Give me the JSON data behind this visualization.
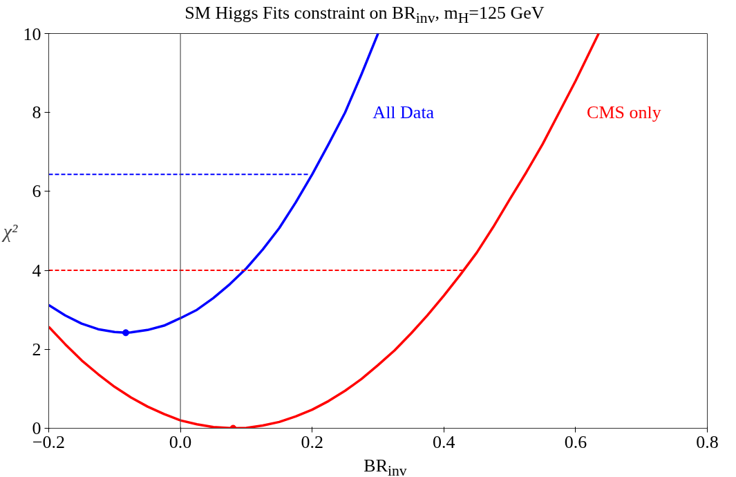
{
  "chart_data": {
    "type": "line",
    "title": "SM Higgs Fits constraint on BR$_{inv}$, m$_{H}$=125 GeV",
    "xlabel": "BR$_{inv}$",
    "ylabel": "χ²",
    "xlim": [
      -0.2,
      0.8
    ],
    "ylim": [
      0,
      10
    ],
    "xticks": [
      {
        "value": -0.2,
        "label": "−0.2"
      },
      {
        "value": 0,
        "label": "0.0"
      },
      0.2,
      0.4,
      0.6,
      0.8
    ],
    "yticks": [
      0,
      2,
      4,
      6,
      8,
      10
    ],
    "grid": false,
    "line_style": "solid",
    "marker": "none",
    "ref_lines": [
      {
        "axis": "x",
        "value": 0,
        "color": "#555555"
      }
    ],
    "series": [
      {
        "name": "All Data",
        "color": "#0000ff",
        "x": [
          -0.2,
          -0.175,
          -0.15,
          -0.125,
          -0.1,
          -0.083,
          -0.075,
          -0.05,
          -0.025,
          0,
          0.025,
          0.05,
          0.075,
          0.1,
          0.125,
          0.15,
          0.175,
          0.2,
          0.225,
          0.25,
          0.275,
          0.3
        ],
        "values": [
          3.12,
          2.86,
          2.65,
          2.51,
          2.44,
          2.42,
          2.43,
          2.49,
          2.6,
          2.79,
          3.0,
          3.3,
          3.65,
          4.05,
          4.53,
          5.07,
          5.72,
          6.43,
          7.2,
          8.0,
          8.97,
          10.0
        ]
      },
      {
        "name": "CMS only",
        "color": "#ff0000",
        "x": [
          -0.2,
          -0.175,
          -0.15,
          -0.125,
          -0.1,
          -0.075,
          -0.05,
          -0.025,
          0,
          0.025,
          0.05,
          0.08,
          0.1,
          0.125,
          0.15,
          0.175,
          0.2,
          0.225,
          0.25,
          0.275,
          0.3,
          0.325,
          0.35,
          0.375,
          0.4,
          0.425,
          0.45,
          0.475,
          0.5,
          0.525,
          0.55,
          0.575,
          0.6,
          0.635
        ],
        "values": [
          2.57,
          2.13,
          1.72,
          1.37,
          1.05,
          0.78,
          0.55,
          0.36,
          0.2,
          0.1,
          0.03,
          0,
          0.01,
          0.07,
          0.16,
          0.3,
          0.47,
          0.69,
          0.95,
          1.25,
          1.6,
          1.97,
          2.4,
          2.86,
          3.36,
          3.89,
          4.45,
          5.1,
          5.8,
          6.48,
          7.2,
          8.0,
          8.8,
          10.0
        ]
      },
      {
        "type": "line",
        "line_style": "dashed",
        "color": "#0000ff",
        "x": [
          -0.2,
          0.195
        ],
        "values": [
          6.43,
          6.43
        ]
      },
      {
        "type": "line",
        "line_style": "dashed",
        "color": "#ff0000",
        "x": [
          -0.2,
          0.43
        ],
        "values": [
          4.0,
          4.0
        ]
      },
      {
        "type": "scatter",
        "marker": "circle",
        "color": "#0000ff",
        "x": [
          -0.083
        ],
        "values": [
          2.42
        ]
      },
      {
        "type": "scatter",
        "marker": "circle",
        "color": "#ff0000",
        "x": [
          0.08
        ],
        "values": [
          0
        ]
      }
    ]
  }
}
